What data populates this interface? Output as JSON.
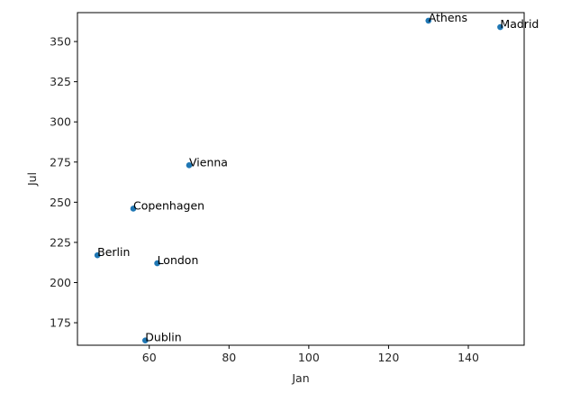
{
  "chart_data": {
    "type": "scatter",
    "title": "",
    "xlabel": "Jan",
    "ylabel": "Jul",
    "xlim": [
      42,
      154
    ],
    "ylim": [
      161,
      368
    ],
    "x_ticks": [
      60,
      80,
      100,
      120,
      140
    ],
    "y_ticks": [
      175,
      200,
      225,
      250,
      275,
      300,
      325,
      350
    ],
    "grid": false,
    "legend": "none",
    "colors": {
      "marker": "#1f77b4",
      "axis": "#000000",
      "text": "#262626"
    },
    "points": [
      {
        "label": "Athens",
        "x": 130,
        "y": 363
      },
      {
        "label": "Madrid",
        "x": 148,
        "y": 359
      },
      {
        "label": "Vienna",
        "x": 70,
        "y": 273
      },
      {
        "label": "Copenhagen",
        "x": 56,
        "y": 246
      },
      {
        "label": "Berlin",
        "x": 47,
        "y": 217
      },
      {
        "label": "London",
        "x": 62,
        "y": 212
      },
      {
        "label": "Dublin",
        "x": 59,
        "y": 164
      }
    ]
  }
}
